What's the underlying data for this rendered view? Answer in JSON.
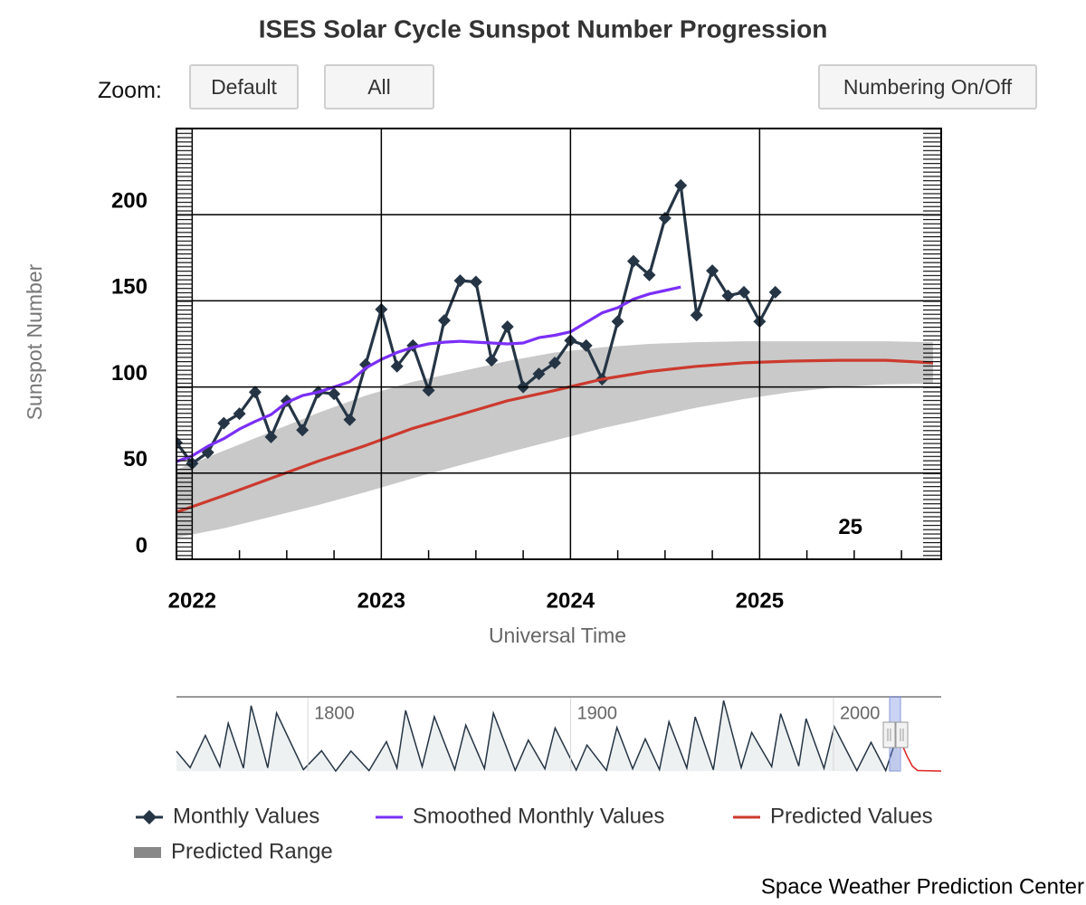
{
  "controls": {
    "zoom_label": "Zoom:",
    "buttons": [
      "Default",
      "All"
    ],
    "numbering": "Numbering On/Off"
  },
  "footer": "Space Weather Prediction Center",
  "chart_data": [
    {
      "type": "line",
      "title": "ISES Solar Cycle Sunspot Number Progression",
      "xlabel": "Universal Time",
      "ylabel": "Sunspot Number",
      "xlim": [
        2021.917,
        2025.96
      ],
      "xticks": [
        2022,
        2023,
        2024,
        2025
      ],
      "ylim": [
        0,
        250
      ],
      "yticks": [
        0,
        50,
        100,
        150,
        200
      ],
      "grid": true,
      "legend": "bottom",
      "annotations": [
        {
          "text": "25",
          "x": 2025.48,
          "y": 18
        }
      ],
      "series": [
        {
          "name": "Monthly Values",
          "color": "#253545",
          "marker": "diamond",
          "x": [
            2021.917,
            2022,
            2022.083,
            2022.167,
            2022.25,
            2022.333,
            2022.417,
            2022.5,
            2022.583,
            2022.667,
            2022.75,
            2022.833,
            2022.917,
            2023,
            2023.083,
            2023.167,
            2023.25,
            2023.333,
            2023.417,
            2023.5,
            2023.583,
            2023.667,
            2023.75,
            2023.833,
            2023.917,
            2024,
            2024.083,
            2024.167,
            2024.25,
            2024.333,
            2024.417,
            2024.5,
            2024.583,
            2024.667,
            2024.75,
            2024.833,
            2024.917,
            2025,
            2025.083
          ],
          "values": [
            67.7,
            55.6,
            62,
            79,
            84.5,
            97,
            71,
            92,
            75,
            97,
            96,
            81,
            113,
            145,
            112,
            124,
            98,
            138.6,
            161.7,
            161,
            115.5,
            135,
            100,
            107.6,
            114,
            127,
            124,
            104.5,
            138,
            173,
            165,
            198,
            217,
            141.7,
            167.5,
            153,
            155,
            138,
            155
          ]
        },
        {
          "name": "Smoothed Monthly Values",
          "color": "#7b2ff7",
          "x": [
            2021.917,
            2022,
            2022.083,
            2022.167,
            2022.25,
            2022.333,
            2022.417,
            2022.5,
            2022.583,
            2022.667,
            2022.75,
            2022.833,
            2022.917,
            2023,
            2023.083,
            2023.167,
            2023.25,
            2023.333,
            2023.417,
            2023.5,
            2023.583,
            2023.667,
            2023.75,
            2023.833,
            2023.917,
            2024,
            2024.083,
            2024.167,
            2024.25,
            2024.333,
            2024.417,
            2024.5,
            2024.583
          ],
          "values": [
            56.7,
            60,
            65.6,
            70,
            75.6,
            80,
            84,
            91,
            95,
            97,
            100,
            103,
            111,
            116,
            120,
            123,
            125,
            126,
            126.5,
            126,
            125.5,
            125,
            125.5,
            128.6,
            130,
            132,
            137.5,
            143,
            146,
            151,
            154,
            156,
            158
          ]
        },
        {
          "name": "Predicted Values",
          "color": "#cc3a2e",
          "x": [
            2021.917,
            2022.167,
            2022.417,
            2022.667,
            2022.917,
            2023.167,
            2023.417,
            2023.667,
            2023.917,
            2024.167,
            2024.417,
            2024.667,
            2024.917,
            2025.167,
            2025.417,
            2025.667,
            2025.917
          ],
          "values": [
            27.3,
            37,
            47,
            57,
            66,
            76,
            84,
            92,
            98,
            104.5,
            109,
            112,
            114,
            115,
            115.5,
            115.5,
            114
          ]
        },
        {
          "name": "Predicted Range",
          "color": "#888888",
          "x": [
            2021.917,
            2022.167,
            2022.417,
            2022.667,
            2022.917,
            2023.167,
            2023.417,
            2023.667,
            2023.917,
            2024.167,
            2024.417,
            2024.667,
            2024.917,
            2025.167,
            2025.417,
            2025.667,
            2025.917
          ],
          "low": [
            12.6,
            18,
            24.7,
            31.5,
            39,
            47,
            54.6,
            62,
            69,
            76,
            82,
            88,
            93,
            97,
            100,
            101.5,
            102
          ],
          "high": [
            52,
            63,
            74,
            85,
            95,
            103,
            109,
            115,
            120,
            123,
            125,
            126,
            126.5,
            126.5,
            126.5,
            126.5,
            126
          ]
        }
      ]
    },
    {
      "type": "line",
      "xlim": [
        1750,
        2041
      ],
      "ylim": [
        0,
        300
      ],
      "xticks": [
        1800,
        1900,
        2000
      ],
      "series": [
        {
          "color": "#253545",
          "fill": "#eef1f1",
          "x": [
            1750,
            1755.2,
            1761,
            1766.5,
            1769.7,
            1775.5,
            1778.4,
            1784.7,
            1788.1,
            1798.3,
            1805.2,
            1810.6,
            1816.4,
            1823.3,
            1829.9,
            1833.9,
            1837.2,
            1843.5,
            1848.1,
            1855.9,
            1860.1,
            1867.2,
            1870.6,
            1878.9,
            1883.9,
            1890.2,
            1894.1,
            1902.1,
            1906.2,
            1913.6,
            1917.6,
            1923.6,
            1928.4,
            1933.8,
            1937.4,
            1944.2,
            1947.4,
            1954.3,
            1958.2,
            1964.9,
            1968.9,
            1976.5,
            1979.9,
            1986.8,
            1989.6,
            1996.4,
            2000.3,
            2008.9,
            2014.3,
            2019.9,
            2024.8
          ],
          "values": [
            80,
            14,
            144,
            18,
            193,
            12,
            264,
            13,
            235,
            6,
            82,
            0,
            81,
            2,
            119,
            12,
            245,
            18,
            220,
            6,
            186,
            10,
            234,
            3,
            125,
            9,
            174,
            4,
            105,
            3,
            176,
            9,
            130,
            6,
            199,
            12,
            219,
            5,
            285,
            14,
            156,
            18,
            232,
            20,
            212,
            11,
            180,
            2,
            116,
            2,
            160
          ]
        },
        {
          "color": "#dd2222",
          "x": [
            2024.8,
            2026,
            2028,
            2030,
            2032,
            2041
          ],
          "values": [
            160,
            110,
            60,
            20,
            2,
            0
          ]
        }
      ]
    }
  ]
}
